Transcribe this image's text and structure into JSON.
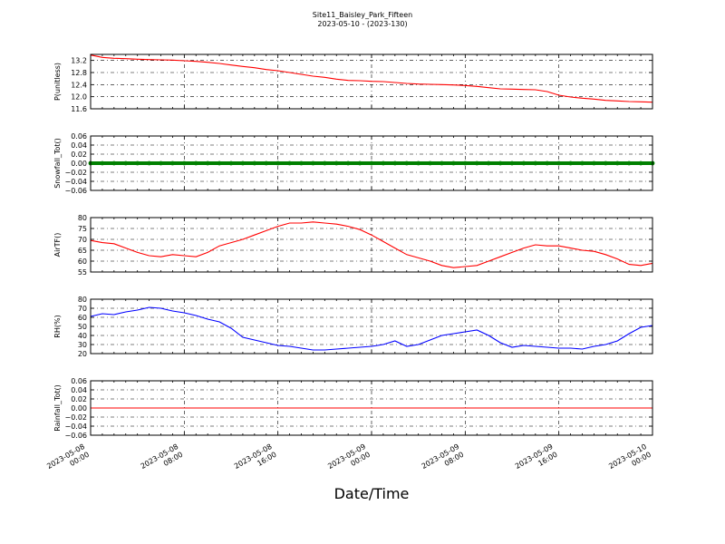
{
  "figure": {
    "title_line1": "Site11_Baisley_Park_Fifteen",
    "title_line2": "2023-05-10 - (2023-130)",
    "xlabel": "Date/Time"
  },
  "chart_data": {
    "type": "line",
    "x_range": [
      "2023-05-08 00:00",
      "2023-05-10 00:00"
    ],
    "x_ticks": [
      {
        "t": 0,
        "line1": "2023-05-08",
        "line2": "00:00"
      },
      {
        "t": 8,
        "line1": "2023-05-08",
        "line2": "08:00"
      },
      {
        "t": 16,
        "line1": "2023-05-08",
        "line2": "16:00"
      },
      {
        "t": 24,
        "line1": "2023-05-09",
        "line2": "00:00"
      },
      {
        "t": 32,
        "line1": "2023-05-09",
        "line2": "08:00"
      },
      {
        "t": 40,
        "line1": "2023-05-09",
        "line2": "16:00"
      },
      {
        "t": 48,
        "line1": "2023-05-10",
        "line2": "00:00"
      }
    ],
    "x_unit_hours_from": "2023-05-08 00:00",
    "grid": true,
    "panels": [
      {
        "ylabel": "P(unitless)",
        "ylim": [
          11.6,
          13.4
        ],
        "yticks": [
          11.6,
          12.0,
          12.4,
          12.8,
          13.2
        ],
        "tick_labels": [
          "11.6",
          "12.0",
          "12.4",
          "12.8",
          "13.2"
        ],
        "color": "#ff0000",
        "style": "line",
        "x": [
          0,
          1,
          2,
          3,
          4,
          5,
          6,
          7,
          8,
          9,
          10,
          11,
          12,
          13,
          14,
          15,
          16,
          17,
          18,
          19,
          20,
          21,
          22,
          23,
          24,
          25,
          26,
          27,
          28,
          29,
          30,
          31,
          32,
          33,
          34,
          35,
          36,
          37,
          38,
          39,
          40,
          41,
          42,
          43,
          44,
          45,
          46,
          47,
          48
        ],
        "y": [
          13.38,
          13.3,
          13.27,
          13.26,
          13.24,
          13.23,
          13.22,
          13.21,
          13.19,
          13.17,
          13.14,
          13.1,
          13.05,
          13.0,
          12.96,
          12.9,
          12.86,
          12.8,
          12.74,
          12.68,
          12.64,
          12.58,
          12.54,
          12.53,
          12.51,
          12.5,
          12.47,
          12.44,
          12.42,
          12.41,
          12.4,
          12.39,
          12.37,
          12.34,
          12.3,
          12.26,
          12.25,
          12.24,
          12.23,
          12.17,
          12.05,
          11.99,
          11.95,
          11.92,
          11.88,
          11.86,
          11.84,
          11.83,
          11.82
        ]
      },
      {
        "ylabel": "Snowfall_Tot()",
        "ylim": [
          -0.06,
          0.06
        ],
        "yticks": [
          -0.06,
          -0.04,
          -0.02,
          0.0,
          0.02,
          0.04,
          0.06
        ],
        "tick_labels": [
          "−0.06",
          "−0.04",
          "−0.02",
          "0.00",
          "0.02",
          "0.04",
          "0.06"
        ],
        "color": "#008000",
        "style": "markers",
        "x": [
          0,
          1,
          2,
          3,
          4,
          5,
          6,
          7,
          8,
          9,
          10,
          11,
          12,
          13,
          14,
          15,
          16,
          17,
          18,
          19,
          20,
          21,
          22,
          23,
          24,
          25,
          26,
          27,
          28,
          29,
          30,
          31,
          32,
          33,
          34,
          35,
          36,
          37,
          38,
          39,
          40,
          41,
          42,
          43,
          44,
          45,
          46,
          47,
          48
        ],
        "y": [
          0,
          0,
          0,
          0,
          0,
          0,
          0,
          0,
          0,
          0,
          0,
          0,
          0,
          0,
          0,
          0,
          0,
          0,
          0,
          0,
          0,
          0,
          0,
          0,
          0,
          0,
          0,
          0,
          0,
          0,
          0,
          0,
          0,
          0,
          0,
          0,
          0,
          0,
          0,
          0,
          0,
          0,
          0,
          0,
          0,
          0,
          0,
          0,
          0
        ]
      },
      {
        "ylabel": "AirTF()",
        "ylim": [
          55,
          80
        ],
        "yticks": [
          55,
          60,
          65,
          70,
          75,
          80
        ],
        "tick_labels": [
          "55",
          "60",
          "65",
          "70",
          "75",
          "80"
        ],
        "color": "#ff0000",
        "style": "line",
        "x": [
          0,
          1,
          2,
          3,
          4,
          5,
          6,
          7,
          8,
          9,
          10,
          11,
          12,
          13,
          14,
          15,
          16,
          17,
          18,
          19,
          20,
          21,
          22,
          23,
          24,
          25,
          26,
          27,
          28,
          29,
          30,
          31,
          32,
          33,
          34,
          35,
          36,
          37,
          38,
          39,
          40,
          41,
          42,
          43,
          44,
          45,
          46,
          47,
          48
        ],
        "y": [
          69.5,
          68.5,
          68,
          66,
          64,
          62.5,
          62,
          63,
          62.5,
          62,
          64,
          67,
          68.5,
          70,
          72,
          74,
          76,
          77.5,
          77.5,
          78,
          77.5,
          77,
          76,
          74.5,
          72,
          69,
          66,
          63,
          61.5,
          60,
          58,
          57,
          57.5,
          58,
          60,
          62,
          64,
          66,
          67.5,
          67,
          67,
          66,
          65,
          64.5,
          63,
          61,
          58.5,
          58,
          59
        ]
      },
      {
        "ylabel": "RH(%)",
        "ylim": [
          20,
          80
        ],
        "yticks": [
          20,
          30,
          40,
          50,
          60,
          70,
          80
        ],
        "tick_labels": [
          "20",
          "30",
          "40",
          "50",
          "60",
          "70",
          "80"
        ],
        "color": "#0000ff",
        "style": "line",
        "x": [
          0,
          1,
          2,
          3,
          4,
          5,
          6,
          7,
          8,
          9,
          10,
          11,
          12,
          13,
          14,
          15,
          16,
          17,
          18,
          19,
          20,
          21,
          22,
          23,
          24,
          25,
          26,
          27,
          28,
          29,
          30,
          31,
          32,
          33,
          34,
          35,
          36,
          37,
          38,
          39,
          40,
          41,
          42,
          43,
          44,
          45,
          46,
          47,
          48
        ],
        "y": [
          61,
          64,
          63,
          66,
          68,
          71,
          70,
          67,
          65,
          62,
          58,
          55,
          48,
          38,
          35,
          32,
          29,
          28,
          26,
          24,
          24,
          25,
          26,
          27,
          28,
          30,
          34,
          28,
          30,
          35,
          40,
          42,
          44,
          46,
          40,
          32,
          27,
          29,
          28,
          27,
          26,
          26,
          25,
          28,
          30,
          34,
          42,
          49,
          51
        ]
      },
      {
        "ylabel": "Rainfall_Tot()",
        "ylim": [
          -0.06,
          0.06
        ],
        "yticks": [
          -0.06,
          -0.04,
          -0.02,
          0.0,
          0.02,
          0.04,
          0.06
        ],
        "tick_labels": [
          "−0.06",
          "−0.04",
          "−0.02",
          "0.00",
          "0.02",
          "0.04",
          "0.06"
        ],
        "color": "#ff0000",
        "style": "line",
        "x": [
          0,
          48
        ],
        "y": [
          0,
          0
        ]
      }
    ]
  }
}
